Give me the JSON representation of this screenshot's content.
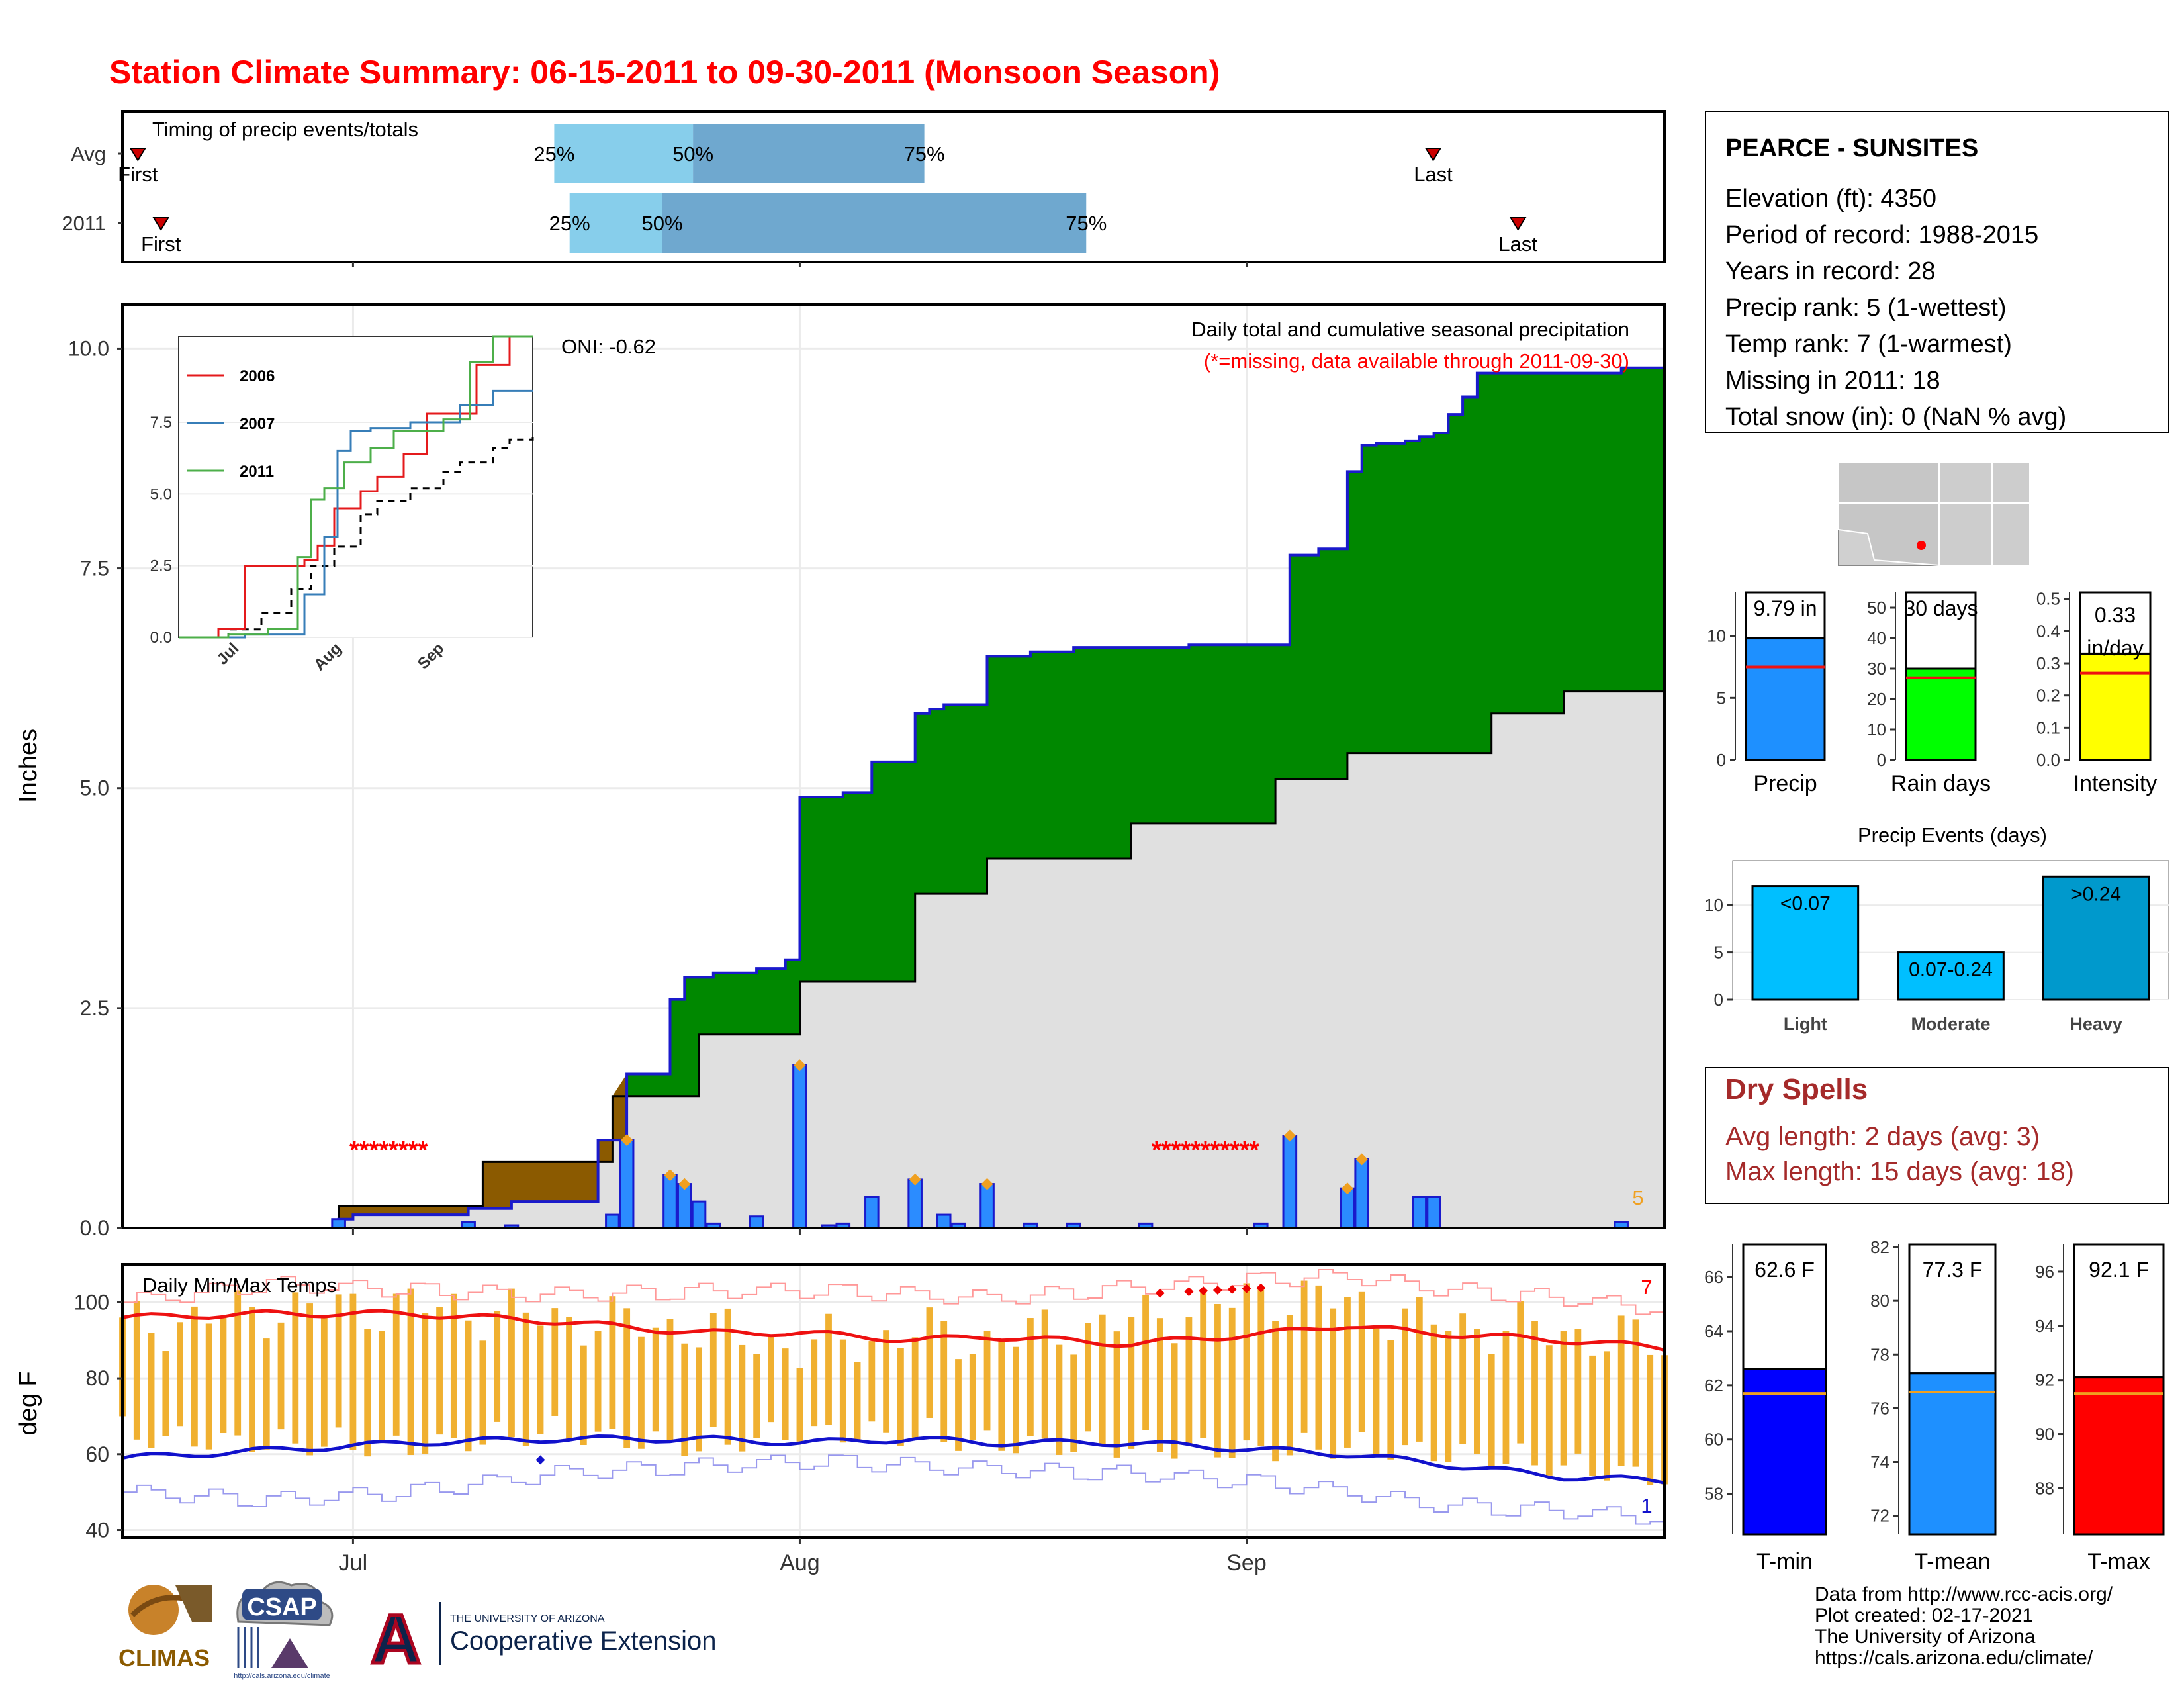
{
  "title": "Station Climate Summary: 06-15-2011 to 09-30-2011 (Monsoon Season)",
  "timing": {
    "title": "Timing of precip events/totals",
    "rows": [
      {
        "label": "Avg",
        "first": 1.0,
        "p25": 28.0,
        "p50": 37.0,
        "p75": 52.0,
        "last": 85.0
      },
      {
        "label": "2011",
        "first": 2.5,
        "p25": 29.0,
        "p50": 35.0,
        "p75": 62.5,
        "last": 90.5
      }
    ],
    "first_label": "First",
    "last_label": "Last",
    "p25_label": "25%",
    "p50_label": "50%",
    "p75_label": "75%",
    "colors": {
      "light": "#87ceeb",
      "dark": "#6fa8cf",
      "marker": "#cc0000"
    }
  },
  "x_axis": {
    "labels": [
      "Jul",
      "Aug",
      "Sep"
    ],
    "positions": [
      16,
      47,
      78
    ],
    "range": [
      0,
      107
    ]
  },
  "precip": {
    "ylabel": "Inches",
    "y_ticks": [
      "0.0",
      "2.5",
      "5.0",
      "7.5",
      "10.0"
    ],
    "yrange": [
      0,
      10.5
    ],
    "title": "Daily total and cumulative seasonal precipitation",
    "note": "(*=missing, data available through 2011-09-30)",
    "oni": "ONI: -0.62",
    "missing1": "********",
    "missing2": "***********",
    "count_label": "5",
    "colors": {
      "above": "#008800",
      "below": "#8b5a00",
      "avg": "#e0e0e0",
      "bars": "#2b8cff",
      "outline": "#1a1acc",
      "missing": "#ff0000"
    }
  },
  "chart_data": [
    {
      "type": "area",
      "name": "cumulative_precip",
      "x_unit": "day of season (0 = Jun 15)",
      "x": [
        0,
        15,
        16,
        24,
        27,
        33,
        35,
        38,
        39,
        41,
        44,
        46,
        47,
        50,
        52,
        55,
        56,
        57,
        60,
        63,
        66,
        72,
        74,
        81,
        83,
        85,
        86,
        87,
        89,
        90,
        91,
        92,
        93,
        94,
        104,
        107
      ],
      "cumulative": [
        0,
        0.1,
        0.15,
        0.22,
        0.3,
        1.0,
        1.75,
        2.6,
        2.85,
        2.9,
        2.95,
        3.05,
        4.9,
        4.95,
        5.3,
        5.85,
        5.9,
        5.95,
        6.5,
        6.55,
        6.6,
        6.6,
        6.63,
        7.65,
        7.72,
        8.6,
        8.9,
        8.92,
        8.95,
        9.0,
        9.04,
        9.25,
        9.45,
        9.72,
        9.78,
        9.79
      ],
      "avg_x": [
        0,
        15,
        25,
        34,
        40,
        47,
        55,
        60,
        70,
        80,
        85,
        95,
        100,
        107
      ],
      "avg_cumulative": [
        0,
        0.25,
        0.75,
        1.5,
        2.2,
        2.8,
        3.8,
        4.2,
        4.6,
        5.1,
        5.4,
        5.85,
        6.1,
        6.3
      ],
      "daily_x": [
        15,
        24,
        27,
        34,
        35,
        38,
        39,
        40,
        41,
        44,
        47,
        49,
        50,
        52,
        55,
        57,
        58,
        60,
        63,
        66,
        71,
        79,
        81,
        85,
        86,
        90,
        91,
        104
      ],
      "daily_precip": [
        0.1,
        0.07,
        0.03,
        0.15,
        1.0,
        0.6,
        0.5,
        0.3,
        0.05,
        0.13,
        1.85,
        0.03,
        0.05,
        0.35,
        0.55,
        0.15,
        0.05,
        0.5,
        0.05,
        0.05,
        0.05,
        0.05,
        1.05,
        0.45,
        0.78,
        0.35,
        0.35,
        0.07
      ]
    },
    {
      "type": "line",
      "name": "daily_temps",
      "ylabel": "deg F",
      "ylim": [
        38,
        110
      ],
      "x": [
        0,
        10,
        20,
        30,
        40,
        47,
        55,
        60,
        70,
        80,
        85,
        90,
        100,
        107
      ],
      "avg_max": [
        96,
        97,
        97,
        95,
        92,
        92,
        90,
        91,
        89,
        92,
        94,
        92,
        90,
        88
      ],
      "avg_min": [
        59,
        61,
        63,
        64,
        64,
        63,
        64,
        63,
        63,
        61,
        60,
        58,
        54,
        53
      ],
      "record_max": [
        100,
        105,
        103,
        102,
        103,
        103,
        102,
        101,
        104,
        106,
        107,
        104,
        101,
        98
      ],
      "record_min": [
        50,
        48,
        50,
        55,
        57,
        58,
        57,
        56,
        55,
        52,
        50,
        47,
        45,
        43
      ],
      "obs_max": [
        93,
        98,
        99,
        96,
        93,
        88,
        92,
        90,
        95,
        102,
        100,
        95,
        92,
        89
      ],
      "obs_min": [
        66,
        64,
        63,
        67,
        63,
        67,
        66,
        64,
        63,
        62,
        63,
        62,
        58,
        55
      ]
    }
  ],
  "temps": {
    "title": "Daily Min/Max Temps",
    "ylabel": "deg F",
    "y_ticks": [
      "40",
      "60",
      "80",
      "100"
    ],
    "count_high": "7",
    "count_low": "1",
    "colors": {
      "avg_max": "#ee1111",
      "avg_min": "#1111cc",
      "rec_max": "#ff9999",
      "rec_min": "#9999ee",
      "obs": "#f0b030"
    }
  },
  "inset": {
    "legend": [
      {
        "name": "2006",
        "color": "#e41a1c"
      },
      {
        "name": "2007",
        "color": "#377eb8"
      },
      {
        "name": "2011",
        "color": "#4daf4a"
      }
    ],
    "y_ticks": [
      "0.0",
      "2.5",
      "5.0",
      "7.5"
    ],
    "x_ticks": [
      "Jul",
      "Aug",
      "Sep"
    ]
  },
  "station": {
    "name": "PEARCE - SUNSITES",
    "lines": [
      "Elevation (ft): 4350",
      "Period of record: 1988-2015",
      "Years in record: 28",
      "Precip rank: 5 (1-wettest)",
      "Temp rank: 7 (1-warmest)",
      "Missing in 2011: 18",
      "Total snow (in): 0 (NaN % avg)"
    ]
  },
  "summary_bars": [
    {
      "label": "Precip",
      "value_text": "9.79 in",
      "value": 9.79,
      "avg": 7.5,
      "ymax": 13.5,
      "ticks": [
        "0",
        "5",
        "10"
      ],
      "tick_vals": [
        0,
        5,
        10
      ],
      "color": "#1e90ff"
    },
    {
      "label": "Rain days",
      "value_text": "30 days",
      "value": 30,
      "avg": 27,
      "ymax": 55,
      "ticks": [
        "0",
        "10",
        "20",
        "30",
        "40",
        "50"
      ],
      "tick_vals": [
        0,
        10,
        20,
        30,
        40,
        50
      ],
      "color": "#00ff00"
    },
    {
      "label": "Intensity",
      "value_text_1": "0.33",
      "value_text_2": "in/day",
      "value": 0.33,
      "avg": 0.27,
      "ymax": 0.52,
      "ticks": [
        "0.0",
        "0.1",
        "0.2",
        "0.3",
        "0.4",
        "0.5"
      ],
      "tick_vals": [
        0,
        0.1,
        0.2,
        0.3,
        0.4,
        0.5
      ],
      "color": "#ffff00"
    }
  ],
  "events": {
    "title": "Precip Events (days)",
    "ticks": [
      "0",
      "5",
      "10"
    ],
    "bars": [
      {
        "label": "Light",
        "value_text": "<0.07",
        "value": 12,
        "color": "#00bfff"
      },
      {
        "label": "Moderate",
        "value_text": "0.07-0.24",
        "value": 5,
        "color": "#00bfff"
      },
      {
        "label": "Heavy",
        "value_text": ">0.24",
        "value": 13,
        "color": "#0099cc"
      }
    ]
  },
  "dry_spells": {
    "title": "Dry Spells",
    "avg_line": "Avg length: 2 days (avg: 3)",
    "max_line": "Max length: 15 days (avg: 18)"
  },
  "temp_bars": [
    {
      "label": "T-min",
      "value_text": "62.6 F",
      "value": 62.6,
      "avg": 61.7,
      "ymin": 56.5,
      "ymax": 67.2,
      "ticks": [
        "58",
        "60",
        "62",
        "64",
        "66"
      ],
      "tick_vals": [
        58,
        60,
        62,
        64,
        66
      ],
      "color": "#0000ff"
    },
    {
      "label": "T-mean",
      "value_text": "77.3 F",
      "value": 77.3,
      "avg": 76.6,
      "ymin": 71.3,
      "ymax": 82.1,
      "ticks": [
        "72",
        "74",
        "76",
        "78",
        "80",
        "82"
      ],
      "tick_vals": [
        72,
        74,
        76,
        78,
        80,
        82
      ],
      "color": "#1e90ff"
    },
    {
      "label": "T-max",
      "value_text": "92.1 F",
      "value": 92.1,
      "avg": 91.5,
      "ymin": 86.3,
      "ymax": 97.0,
      "ticks": [
        "88",
        "90",
        "92",
        "94",
        "96"
      ],
      "tick_vals": [
        88,
        90,
        92,
        94,
        96
      ],
      "color": "#ff0000"
    }
  ],
  "footer": {
    "lines": [
      "Data from http://www.rcc-acis.org/",
      "Plot created: 02-17-2021",
      "The University of Arizona",
      "https://cals.arizona.edu/climate/"
    ],
    "climas": "CLIMAS",
    "csap": "CSAP",
    "csap_url": "http://cals.arizona.edu/climate",
    "ua_letter": "A",
    "ua_top": "THE UNIVERSITY OF ARIZONA",
    "ua_bottom": "Cooperative Extension"
  }
}
